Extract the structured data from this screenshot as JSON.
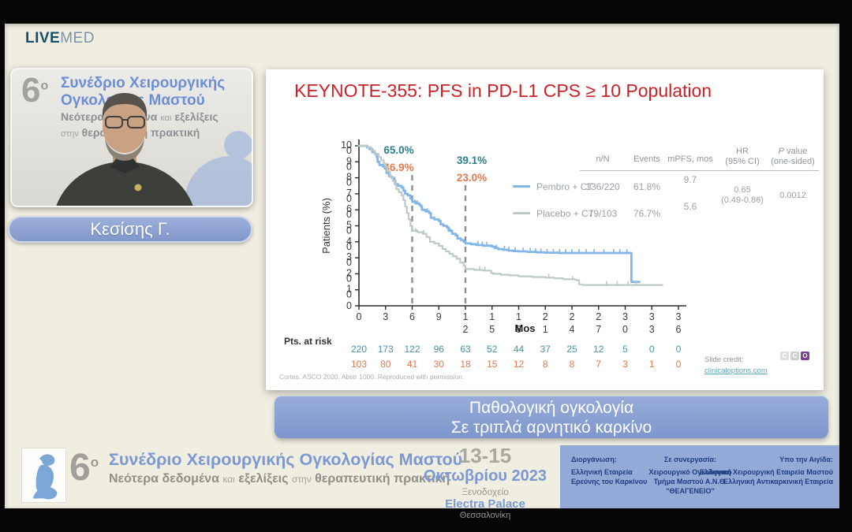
{
  "brand": {
    "live": "LIVE",
    "med": "MED"
  },
  "webcam": {
    "number": "6",
    "degree": "ο",
    "banner_line1": "Συνέδριο Χειρουργικής",
    "banner_line2": "Ογκολογίας Μαστού",
    "sub1_a": "Νεότερα δεδομένα",
    "sub1_b": "και",
    "sub1_c": "εξελίξεις",
    "sub2_a": "στην",
    "sub2_b": "θεραπευτική πρακτική",
    "speaker_name": "Κεσίσης Γ."
  },
  "slide": {
    "title": "KEYNOTE-355: PFS in PD-L1 CPS ≥ 10 Population",
    "citation": "Cortes. ASCO 2020. Abstr 1000. Reproduced with permission.",
    "credit_label": "Slide credit:",
    "credit_link": "clinicaloptions.com",
    "cco": [
      {
        "letter": "C",
        "bg": "#dedede"
      },
      {
        "letter": "C",
        "bg": "#cfcfcf"
      },
      {
        "letter": "O",
        "bg": "#7d3f98"
      }
    ],
    "table": {
      "columns": [
        {
          "l1": "n/N"
        },
        {
          "l1": "Events"
        },
        {
          "l1": "mPFS, mos"
        },
        {
          "l1": "HR",
          "l2": "(95% CI)"
        },
        {
          "l1": "P value",
          "l2": "(one-sided)"
        }
      ],
      "rows": [
        {
          "label": "Pembro + CT",
          "n_N": "136/220",
          "events": "61.8%",
          "mpfs": "9.7"
        },
        {
          "label": "Placebo + CT",
          "n_N": "79/103",
          "events": "76.7%",
          "mpfs": "5.6"
        }
      ],
      "hr": "0.65",
      "hr_ci": "(0.49-0.86)",
      "p_value": "0.0012"
    }
  },
  "chart_data": {
    "type": "line",
    "subtype": "kaplan-meier",
    "title": "KEYNOTE-355: PFS in PD-L1 CPS ≥ 10 Population",
    "xlabel": "Mos",
    "ylabel": "Patients (%)",
    "xlim": [
      0,
      36
    ],
    "ylim": [
      0,
      100
    ],
    "x_ticks": [
      0,
      3,
      6,
      9,
      12,
      15,
      18,
      21,
      24,
      27,
      30,
      33,
      36
    ],
    "y_ticks": [
      100,
      90,
      80,
      70,
      60,
      50,
      40,
      30,
      20,
      10,
      0
    ],
    "grid": false,
    "annotations": [
      {
        "x": 6,
        "labels": [
          {
            "text": "65.0%",
            "color": "#2e7f8d"
          },
          {
            "text": "46.9%",
            "color": "#e07a4e"
          }
        ]
      },
      {
        "x": 12,
        "labels": [
          {
            "text": "39.1%",
            "color": "#2e7f8d"
          },
          {
            "text": "23.0%",
            "color": "#e07a4e"
          }
        ]
      }
    ],
    "series": [
      {
        "name": "Pembro + CT",
        "color": "#82b6ea",
        "points": [
          [
            0,
            100
          ],
          [
            0.9,
            99
          ],
          [
            1.2,
            98
          ],
          [
            1.5,
            96
          ],
          [
            1.8,
            95
          ],
          [
            2.0,
            93
          ],
          [
            2.1,
            90
          ],
          [
            2.3,
            88
          ],
          [
            2.7,
            87
          ],
          [
            3.0,
            86
          ],
          [
            3.1,
            83
          ],
          [
            3.4,
            81
          ],
          [
            3.7,
            80
          ],
          [
            4.0,
            78
          ],
          [
            4.1,
            76
          ],
          [
            4.4,
            75
          ],
          [
            4.8,
            74
          ],
          [
            5.0,
            72
          ],
          [
            5.2,
            70
          ],
          [
            5.5,
            69
          ],
          [
            5.8,
            67
          ],
          [
            6.0,
            65
          ],
          [
            6.4,
            64
          ],
          [
            6.8,
            63
          ],
          [
            7.0,
            62
          ],
          [
            7.1,
            60
          ],
          [
            7.5,
            59
          ],
          [
            7.9,
            58
          ],
          [
            8.1,
            55
          ],
          [
            8.5,
            54
          ],
          [
            9.0,
            53
          ],
          [
            9.2,
            51
          ],
          [
            9.5,
            50
          ],
          [
            9.9,
            49
          ],
          [
            10.1,
            47
          ],
          [
            10.5,
            45
          ],
          [
            10.9,
            44
          ],
          [
            11.1,
            42
          ],
          [
            11.5,
            41
          ],
          [
            11.8,
            40
          ],
          [
            12.0,
            39
          ],
          [
            12.6,
            38.5
          ],
          [
            13.2,
            38
          ],
          [
            14.0,
            37.6
          ],
          [
            15.0,
            37
          ],
          [
            15.3,
            36
          ],
          [
            15.7,
            35.4
          ],
          [
            16.2,
            35
          ],
          [
            16.8,
            34.5
          ],
          [
            17.4,
            34.2
          ],
          [
            18.0,
            34
          ],
          [
            19.0,
            33.7
          ],
          [
            20.0,
            33.4
          ],
          [
            21.0,
            33.2
          ],
          [
            22.5,
            33
          ],
          [
            30.7,
            33
          ],
          [
            30.7,
            15
          ],
          [
            31.6,
            15
          ]
        ],
        "censors": [
          [
            1.5,
            96
          ],
          [
            2.8,
            87
          ],
          [
            6.3,
            64
          ],
          [
            6.6,
            63.5
          ],
          [
            7.7,
            58.5
          ],
          [
            10.3,
            46
          ],
          [
            13.4,
            38
          ],
          [
            13.9,
            37.8
          ],
          [
            14.4,
            37.6
          ],
          [
            15.5,
            35.8
          ],
          [
            16.4,
            35
          ],
          [
            16.9,
            34.6
          ],
          [
            17.6,
            34.2
          ],
          [
            18.5,
            33.9
          ],
          [
            19.3,
            33.7
          ],
          [
            19.9,
            33.6
          ],
          [
            20.5,
            33.4
          ],
          [
            21.2,
            33.2
          ],
          [
            21.9,
            33.1
          ],
          [
            22.6,
            33
          ],
          [
            23.3,
            33
          ],
          [
            24.0,
            33
          ],
          [
            24.8,
            33
          ],
          [
            25.6,
            33
          ],
          [
            26.5,
            33
          ],
          [
            27.6,
            33
          ],
          [
            28.7,
            33
          ],
          [
            29.4,
            33
          ],
          [
            30.2,
            33
          ]
        ]
      },
      {
        "name": "Placebo + CT",
        "color": "#bdc9c7",
        "points": [
          [
            0,
            100
          ],
          [
            1.0,
            99
          ],
          [
            1.4,
            97
          ],
          [
            1.8,
            95
          ],
          [
            2.2,
            93
          ],
          [
            2.5,
            91
          ],
          [
            2.8,
            89
          ],
          [
            3.0,
            87
          ],
          [
            3.2,
            84
          ],
          [
            3.5,
            81
          ],
          [
            3.8,
            78
          ],
          [
            4.0,
            76
          ],
          [
            4.2,
            73
          ],
          [
            4.5,
            71
          ],
          [
            4.8,
            69
          ],
          [
            5.0,
            66
          ],
          [
            5.2,
            62
          ],
          [
            5.4,
            58
          ],
          [
            5.6,
            54
          ],
          [
            5.8,
            50
          ],
          [
            6.0,
            47
          ],
          [
            6.6,
            46
          ],
          [
            7.2,
            45
          ],
          [
            7.6,
            43
          ],
          [
            8.0,
            40
          ],
          [
            8.5,
            39
          ],
          [
            9.0,
            37.5
          ],
          [
            9.4,
            35.5
          ],
          [
            9.8,
            34
          ],
          [
            10.2,
            32.5
          ],
          [
            10.6,
            31
          ],
          [
            11.0,
            29.5
          ],
          [
            11.4,
            27
          ],
          [
            11.8,
            25
          ],
          [
            12.0,
            23
          ],
          [
            13.0,
            22.4
          ],
          [
            14.0,
            22
          ],
          [
            14.9,
            20.5
          ],
          [
            15.1,
            20
          ],
          [
            16.0,
            19.4
          ],
          [
            17.0,
            19
          ],
          [
            18.0,
            18.4
          ],
          [
            19.5,
            18
          ],
          [
            21.0,
            17.6
          ],
          [
            22.0,
            17.2
          ],
          [
            23.0,
            16.6
          ],
          [
            24.4,
            16
          ],
          [
            24.8,
            13.4
          ],
          [
            25.2,
            13
          ],
          [
            34.2,
            13
          ]
        ],
        "censors": [
          [
            6.4,
            46
          ],
          [
            7.3,
            45
          ],
          [
            13.6,
            22.3
          ],
          [
            14.2,
            22
          ],
          [
            21.4,
            17.6
          ],
          [
            24.1,
            16
          ],
          [
            27.9,
            13
          ],
          [
            29.1,
            13
          ],
          [
            30.3,
            13
          ],
          [
            31.2,
            13
          ]
        ]
      }
    ],
    "at_risk_label": "Pts. at risk",
    "at_risk": [
      {
        "color": "#4b93a3",
        "values": [
          220,
          173,
          122,
          96,
          63,
          52,
          44,
          37,
          25,
          12,
          5,
          0,
          0
        ]
      },
      {
        "color": "#e07a4e",
        "values": [
          103,
          80,
          41,
          30,
          18,
          15,
          12,
          8,
          8,
          7,
          3,
          1,
          0
        ]
      }
    ]
  },
  "topic_banner": {
    "line1": "Παθολογική ογκολογία",
    "line2": "Σε τριπλά αρνητικό καρκίνο"
  },
  "footer": {
    "number": "6",
    "degree": "ο",
    "title": "Συνέδριο Χειρουργικής Ογκολογίας Μαστού",
    "sub_a": "Νεότερα δεδομένα",
    "sub_b": "και",
    "sub_c": "εξελίξεις",
    "sub_d": "στην",
    "sub_e": "θεραπευτική πρακτική",
    "dates": "13-15",
    "month_year": "Οκτωβρίου 2023",
    "venue_label": "Ξενοδοχείο",
    "venue": "Electra Palace",
    "city": "Θεσσαλονίκη",
    "org1_header": "Διοργάνωση:",
    "org1_line1": "Ελληνική Εταιρεία",
    "org1_line2": "Ερεύνης του Καρκίνου",
    "org2_header": "Σε συνεργασία:",
    "org2_line1": "Χειρουργικό Ογκολογικό",
    "org2_line2": "Τμήμα Μαστού Α.Ν.Θ. \"ΘΕΑΓΕΝΕΙΟ\"",
    "org3_header": "Υπο την Αιγίδα:",
    "org3_line1": "Ελληνική Χειρουργική Εταιρεία Μαστού",
    "org3_line2": "Ελληνική Αντικαρκινική Εταιρεία"
  }
}
